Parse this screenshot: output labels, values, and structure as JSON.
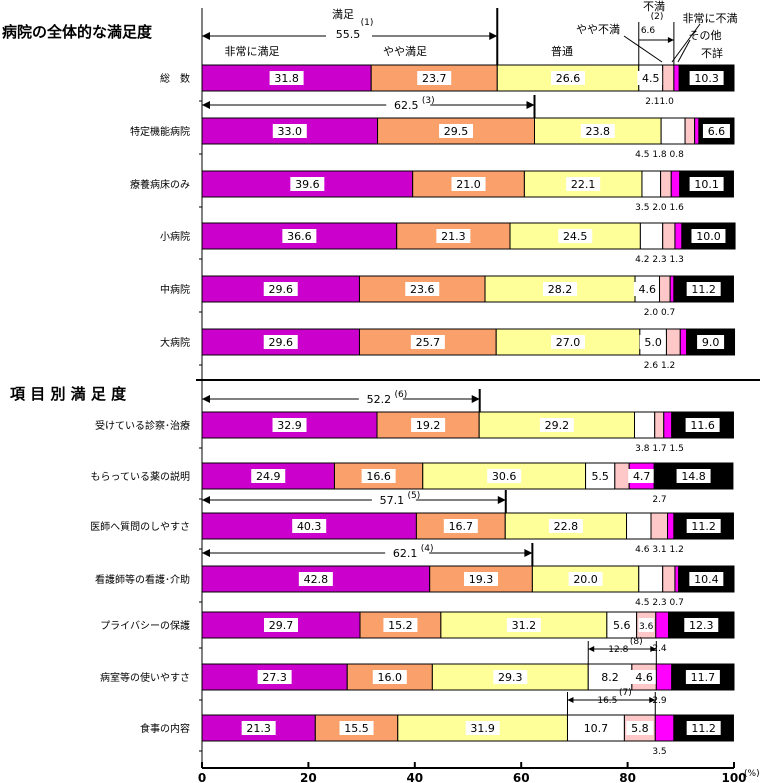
{
  "chart_data": {
    "type": "bar",
    "orientation": "horizontal",
    "stacked": true,
    "xlim": [
      0,
      100
    ],
    "x_ticks": [
      "0",
      "20",
      "40",
      "60",
      "80",
      "100"
    ],
    "x_unit": "(%)",
    "section_titles": [
      "病院の全体的な満足度",
      "項 目 別 満 足 度"
    ],
    "category_header": [
      {
        "name": "非常に満足",
        "color": "#CC00CC"
      },
      {
        "name": "やや満足",
        "color": "#F9A06B"
      },
      {
        "name": "普通",
        "color": "#FFFF99"
      },
      {
        "name": "やや不満",
        "color": "#FFFFFF"
      },
      {
        "name": "非常に不満",
        "color": "#FFC8C8"
      },
      {
        "name": "その他",
        "color": "#FF00FF"
      },
      {
        "name": "不詳",
        "color": "#000000"
      }
    ],
    "header_labels": {
      "manzoku": "満足",
      "manzoku_note": "(1)",
      "manzoku_value": "55.5",
      "fuman": "不満",
      "fuman_note": "(2)",
      "fuman_value": "6.6"
    },
    "rows": [
      {
        "label": "総　数",
        "values": [
          31.8,
          23.7,
          26.6,
          4.5,
          2.1,
          1.0,
          10.3
        ],
        "inside": [
          "31.8",
          "23.7",
          "26.6",
          "4.5",
          "",
          "",
          "10.3"
        ],
        "below": "2.11.0"
      },
      {
        "label": "特定機能病院",
        "values": [
          33.0,
          29.5,
          23.8,
          4.5,
          1.8,
          0.8,
          6.6
        ],
        "inside": [
          "33.0",
          "29.5",
          "23.8",
          "",
          "",
          "",
          "6.6"
        ],
        "below": "4.5 1.8 0.8",
        "bracket": {
          "value": "62.5",
          "note": "(3)",
          "end": 62.5
        }
      },
      {
        "label": "療養病床のみ",
        "values": [
          39.6,
          21.0,
          22.1,
          3.5,
          2.0,
          1.6,
          10.1
        ],
        "inside": [
          "39.6",
          "21.0",
          "22.1",
          "",
          "",
          "",
          "10.1"
        ],
        "below": "3.5 2.0 1.6"
      },
      {
        "label": "小病院",
        "values": [
          36.6,
          21.3,
          24.5,
          4.2,
          2.3,
          1.3,
          10.0
        ],
        "inside": [
          "36.6",
          "21.3",
          "24.5",
          "",
          "",
          "",
          "10.0"
        ],
        "below": "4.2 2.3 1.3"
      },
      {
        "label": "中病院",
        "values": [
          29.6,
          23.6,
          28.2,
          4.6,
          2.0,
          0.7,
          11.2
        ],
        "inside": [
          "29.6",
          "23.6",
          "28.2",
          "4.6",
          "",
          "",
          "11.2"
        ],
        "below": "2.0 0.7"
      },
      {
        "label": "大病院",
        "values": [
          29.6,
          25.7,
          27.0,
          5.0,
          2.6,
          1.2,
          9.0
        ],
        "inside": [
          "29.6",
          "25.7",
          "27.0",
          "5.0",
          "",
          "",
          "9.0"
        ],
        "below": "2.6 1.2"
      },
      {
        "label": "受けている診察･治療",
        "values": [
          32.9,
          19.2,
          29.2,
          3.8,
          1.7,
          1.5,
          11.6
        ],
        "inside": [
          "32.9",
          "19.2",
          "29.2",
          "",
          "",
          "",
          "11.6"
        ],
        "below": "3.8 1.7 1.5",
        "bracket": {
          "value": "52.2",
          "note": "(6)",
          "end": 52.2
        }
      },
      {
        "label": "もらっている薬の説明",
        "values": [
          24.9,
          16.6,
          30.6,
          5.5,
          2.7,
          4.7,
          14.8
        ],
        "inside": [
          "24.9",
          "16.6",
          "30.6",
          "5.5",
          "",
          "4.7",
          "14.8"
        ],
        "below": "2.7"
      },
      {
        "label": "医師へ質問のしやすさ",
        "values": [
          40.3,
          16.7,
          22.8,
          4.6,
          3.1,
          1.2,
          11.2
        ],
        "inside": [
          "40.3",
          "16.7",
          "22.8",
          "",
          "",
          "",
          "11.2"
        ],
        "below": "4.6 3.1 1.2",
        "bracket": {
          "value": "57.1",
          "note": "(5)",
          "end": 57.1
        }
      },
      {
        "label": "看護師等の看護･介助",
        "values": [
          42.8,
          19.3,
          20.0,
          4.5,
          2.3,
          0.7,
          10.4
        ],
        "inside": [
          "42.8",
          "19.3",
          "20.0",
          "",
          "",
          "",
          "10.4"
        ],
        "below": "4.5 2.3 0.7",
        "bracket": {
          "value": "62.1",
          "note": "(4)",
          "end": 62.1
        }
      },
      {
        "label": "プライバシーの保護",
        "values": [
          29.7,
          15.2,
          31.2,
          5.6,
          3.6,
          2.4,
          12.3
        ],
        "inside": [
          "29.7",
          "15.2",
          "31.2",
          "5.6",
          "3.6",
          "",
          "12.3"
        ],
        "below": "2.4"
      },
      {
        "label": "病室等の使いやすさ",
        "values": [
          27.3,
          16.0,
          29.3,
          8.2,
          4.6,
          2.9,
          11.7
        ],
        "inside": [
          "27.3",
          "16.0",
          "29.3",
          "8.2",
          "4.6",
          "",
          "11.7"
        ],
        "below": "2.9",
        "bracket2": {
          "value": "12.8",
          "note": "(8)",
          "start": 72.6,
          "end": 85.4
        }
      },
      {
        "label": "食事の内容",
        "values": [
          21.3,
          15.5,
          31.9,
          10.7,
          5.8,
          3.5,
          11.2
        ],
        "inside": [
          "21.3",
          "15.5",
          "31.9",
          "10.7",
          "5.8",
          "",
          "11.2"
        ],
        "below": "3.5",
        "bracket2": {
          "value": "16.5",
          "note": "(7)",
          "start": 68.7,
          "end": 85.2
        }
      }
    ]
  }
}
